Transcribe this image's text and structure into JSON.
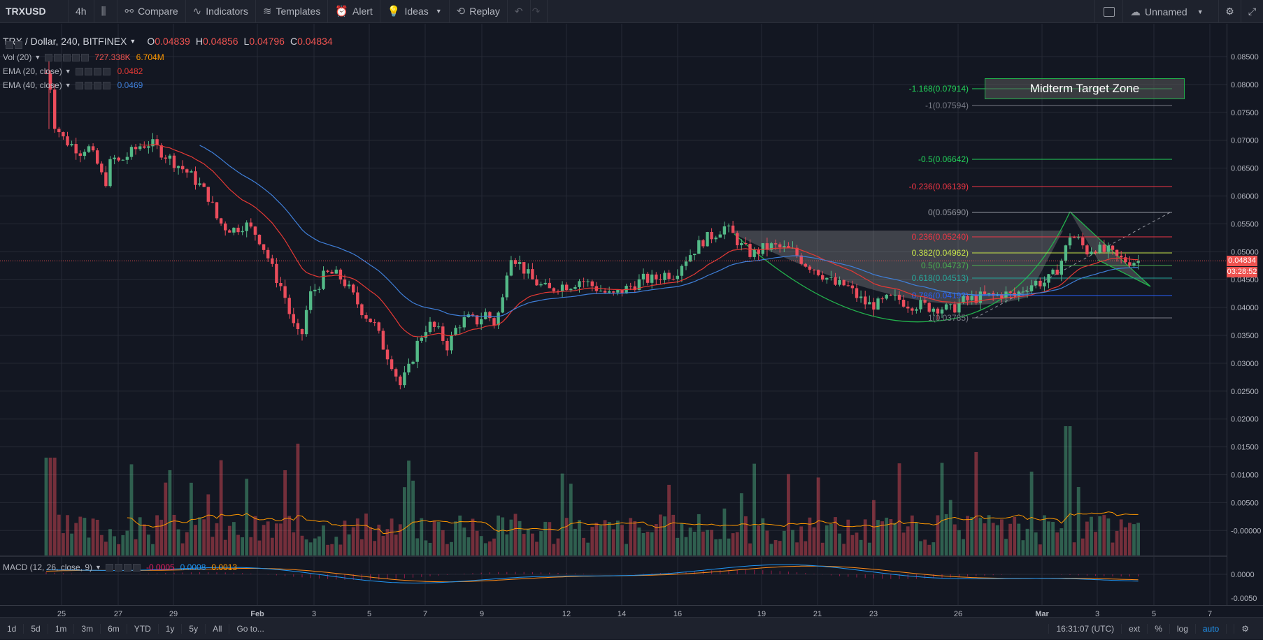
{
  "toolbar": {
    "symbol": "TRXUSD",
    "interval": "4h",
    "compare": "Compare",
    "indicators": "Indicators",
    "templates": "Templates",
    "alert": "Alert",
    "ideas": "Ideas",
    "replay": "Replay",
    "layout_name": "Unnamed"
  },
  "legend": {
    "title": "TRX / Dollar, 240, BITFINEX",
    "open_label": "O",
    "open": "0.04839",
    "high_label": "H",
    "high": "0.04856",
    "low_label": "L",
    "low": "0.04796",
    "close_label": "C",
    "close": "0.04834",
    "vol_name": "Vol (20)",
    "vol_value1": "727.338K",
    "vol_value2": "6.704M",
    "ema20_name": "EMA (20, close)",
    "ema20_value": "0.0482",
    "ema40_name": "EMA (40, close)",
    "ema40_value": "0.0469",
    "macd_name": "MACD (12, 26, close, 9)",
    "macd_v1": "-0.0005",
    "macd_v2": "0.0008",
    "macd_v3": "0.0013"
  },
  "annotation": {
    "target_zone": "Midterm Target Zone"
  },
  "fib_levels": [
    {
      "label": "-1.168(0.07914)",
      "color": "#22d35a"
    },
    {
      "label": "-1(0.07594)",
      "color": "#787b86"
    },
    {
      "label": "-0.5(0.06642)",
      "color": "#22d35a"
    },
    {
      "label": "-0.236(0.06139)",
      "color": "#f23645"
    },
    {
      "label": "0(0.05690)",
      "color": "#9598a1"
    },
    {
      "label": "0.236(0.05240)",
      "color": "#f23645"
    },
    {
      "label": "0.382(0.04962)",
      "color": "#c8e64a"
    },
    {
      "label": "0.5(0.04737)",
      "color": "#4caf50"
    },
    {
      "label": "0.618(0.04513)",
      "color": "#26a69a"
    },
    {
      "label": "0.786(0.04193)",
      "color": "#2962ff"
    },
    {
      "label": "1(0.03785)",
      "color": "#787b86"
    }
  ],
  "price_axis": [
    "0.08500",
    "0.08000",
    "0.07500",
    "0.07000",
    "0.06500",
    "0.06000",
    "0.05500",
    "0.05000",
    "0.04500",
    "0.04000",
    "0.03500",
    "0.03000",
    "0.02500",
    "0.02000",
    "0.01500",
    "0.01000",
    "0.00500",
    "-0.00000"
  ],
  "macd_axis": [
    "0.0000",
    "-0.0050"
  ],
  "price_tags": {
    "last": "0.04834",
    "countdown": "03:28:52"
  },
  "time_axis": [
    "25",
    "27",
    "29",
    "Feb",
    "3",
    "5",
    "7",
    "9",
    "12",
    "14",
    "16",
    "19",
    "21",
    "23",
    "26",
    "Mar",
    "3",
    "5",
    "7"
  ],
  "bottom": {
    "ranges": [
      "1d",
      "5d",
      "1m",
      "3m",
      "6m",
      "YTD",
      "1y",
      "5y",
      "All"
    ],
    "goto": "Go to...",
    "clock": "16:31:07 (UTC)",
    "ext": "ext",
    "percent": "%",
    "log": "log",
    "auto": "auto"
  },
  "colors": {
    "up": "#53b987",
    "down": "#eb4d5c",
    "ema20": "#e53935",
    "ema40": "#3f7fd9",
    "macd": "#2196f3",
    "signal": "#ff8c1a",
    "green_line": "#22b14c"
  }
}
